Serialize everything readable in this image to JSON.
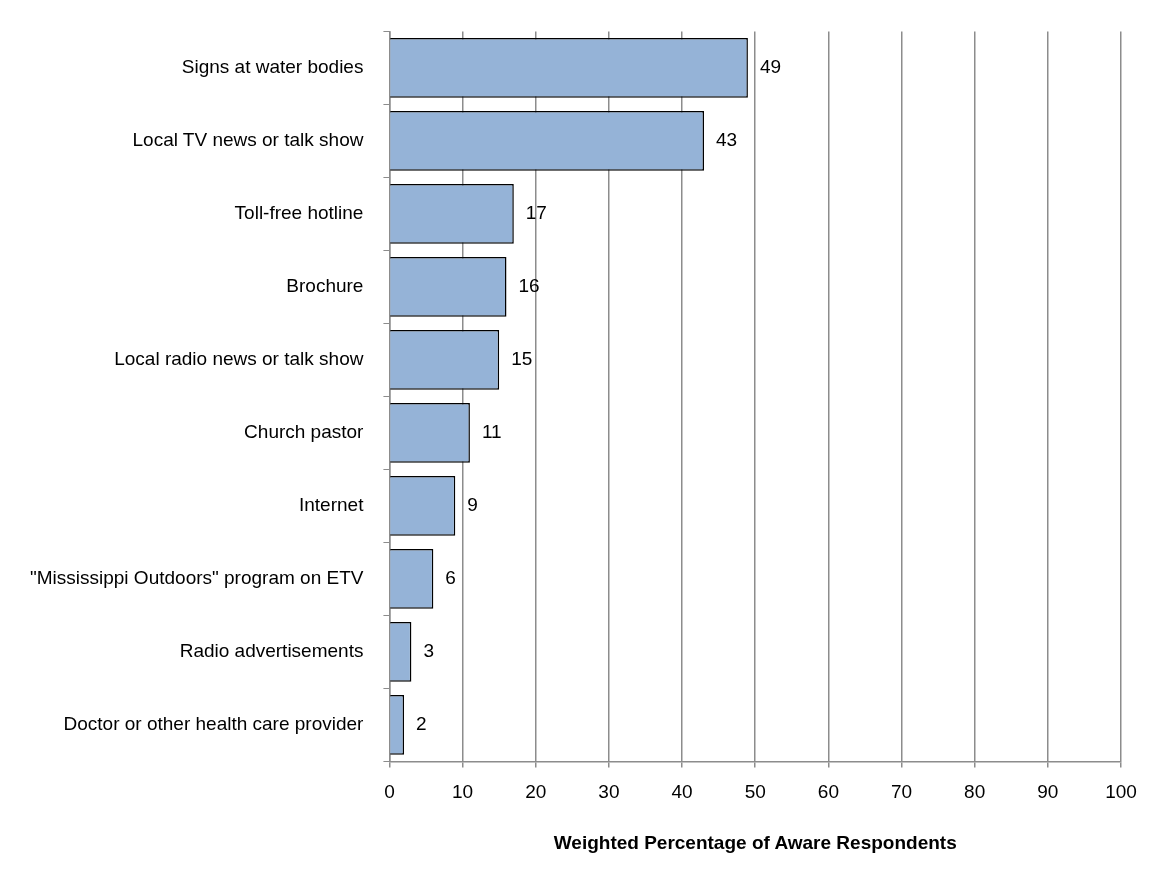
{
  "chart_data": {
    "type": "bar",
    "orientation": "horizontal",
    "xlabel": "Weighted Percentage of Aware Respondents",
    "categories": [
      "Signs at water bodies",
      "Local TV news or talk show",
      "Toll-free hotline",
      "Brochure",
      "Local radio news or talk show",
      "Church pastor",
      "Internet",
      "\"Mississippi Outdoors\" program on ETV",
      "Radio advertisements",
      "Doctor or other health care provider"
    ],
    "values": [
      49,
      43,
      17,
      16,
      15,
      11,
      9,
      6,
      3,
      2
    ],
    "color": "#95b3d7",
    "data_labels": true,
    "grid": "x",
    "legend": false,
    "xlim": [
      0,
      100
    ],
    "xticks": [
      0,
      10,
      20,
      30,
      40,
      50,
      60,
      70,
      80,
      90,
      100
    ]
  }
}
